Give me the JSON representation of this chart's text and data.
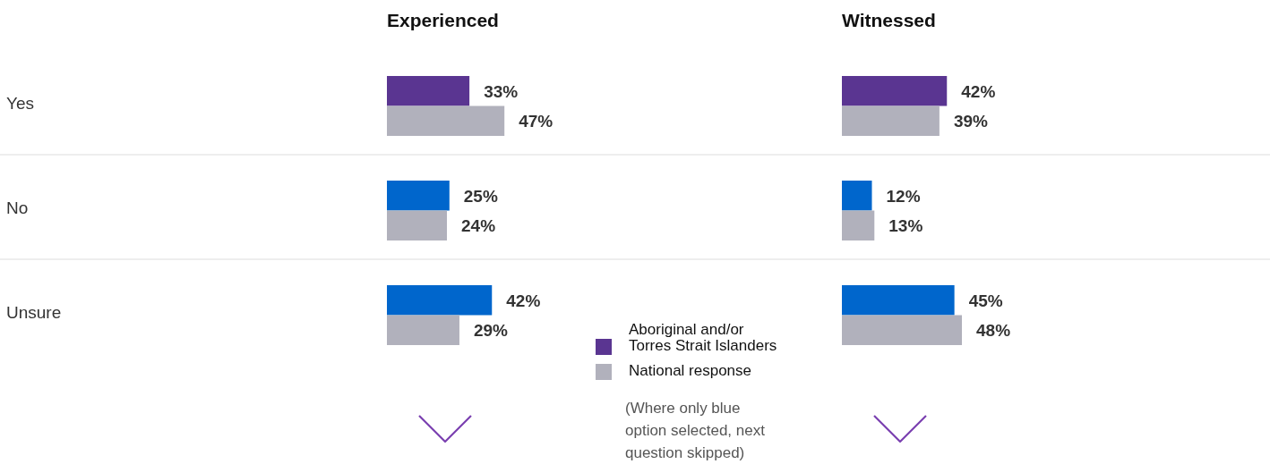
{
  "chart_data": [
    {
      "type": "bar",
      "orientation": "horizontal",
      "title": "Experienced",
      "categories": [
        "Yes",
        "No",
        "Unsure"
      ],
      "legend": "bottom right",
      "annotations": [
        "(Where only blue option selected, next question skipped)"
      ],
      "series": [
        {
          "name": "Aboriginal and/or Torres Strait Islanders",
          "color": "#5a3591",
          "colors": [
            "#5a3591",
            "#0066cc",
            "#0066cc"
          ],
          "values": [
            33,
            25,
            42
          ],
          "value_labels": [
            "33%",
            "25%",
            "42%"
          ]
        },
        {
          "name": "National response",
          "color": "#b1b1bc",
          "values": [
            47,
            24,
            29
          ],
          "value_labels": [
            "47%",
            "24%",
            "29%"
          ]
        }
      ]
    },
    {
      "type": "bar",
      "orientation": "horizontal",
      "title": "Witnessed",
      "tick_labels": false,
      "series": [
        {
          "colors": [
            "#5a3591",
            "#0066cc",
            "#0066cc"
          ],
          "values": [
            42,
            12,
            45
          ],
          "value_labels": [
            "42%",
            "12%",
            "45%"
          ]
        },
        {
          "color": "#b1b1bc",
          "values": [
            39,
            13,
            48
          ],
          "value_labels": [
            "39%",
            "13%",
            "48%"
          ]
        }
      ]
    }
  ]
}
